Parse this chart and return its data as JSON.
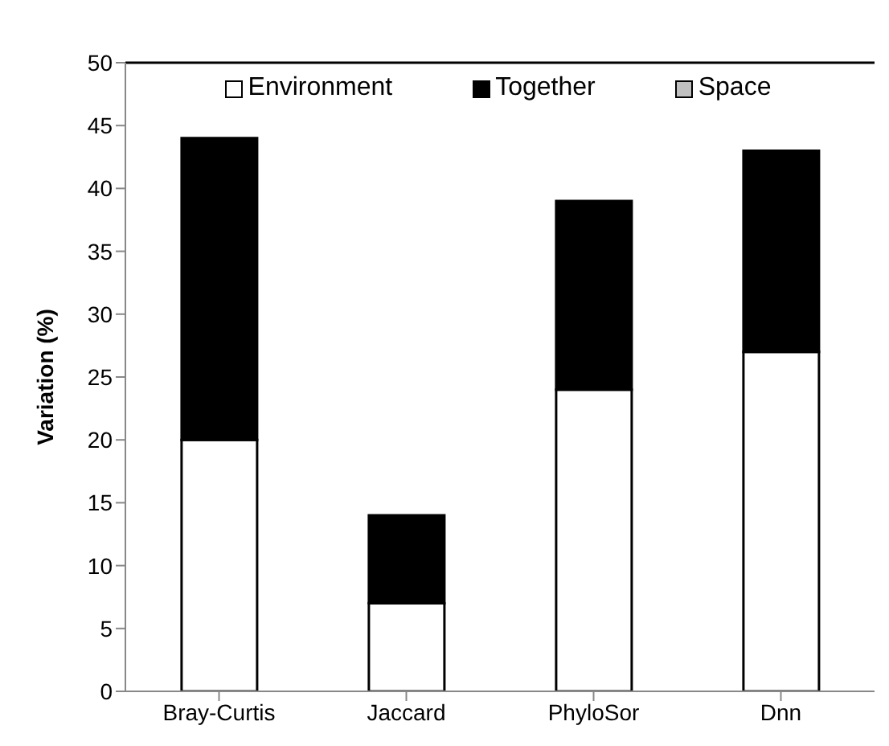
{
  "chart_data": {
    "type": "bar",
    "stacked": true,
    "ylabel": "Variation (%)",
    "categories": [
      "Bray-Curtis",
      "Jaccard",
      "PhyloSor",
      "Dnn"
    ],
    "series": [
      {
        "name": "Environment",
        "color": "#ffffff",
        "values": [
          20,
          7,
          24,
          27
        ]
      },
      {
        "name": "Together",
        "color": "#000000",
        "values": [
          24,
          7,
          15,
          16
        ]
      },
      {
        "name": "Space",
        "color": "#c0c0c0",
        "values": [
          0,
          0,
          0,
          0
        ]
      }
    ],
    "ylim": [
      0,
      50
    ],
    "yticks": [
      0,
      5,
      10,
      15,
      20,
      25,
      30,
      35,
      40,
      45,
      50
    ],
    "grid": false,
    "legend": "top"
  }
}
